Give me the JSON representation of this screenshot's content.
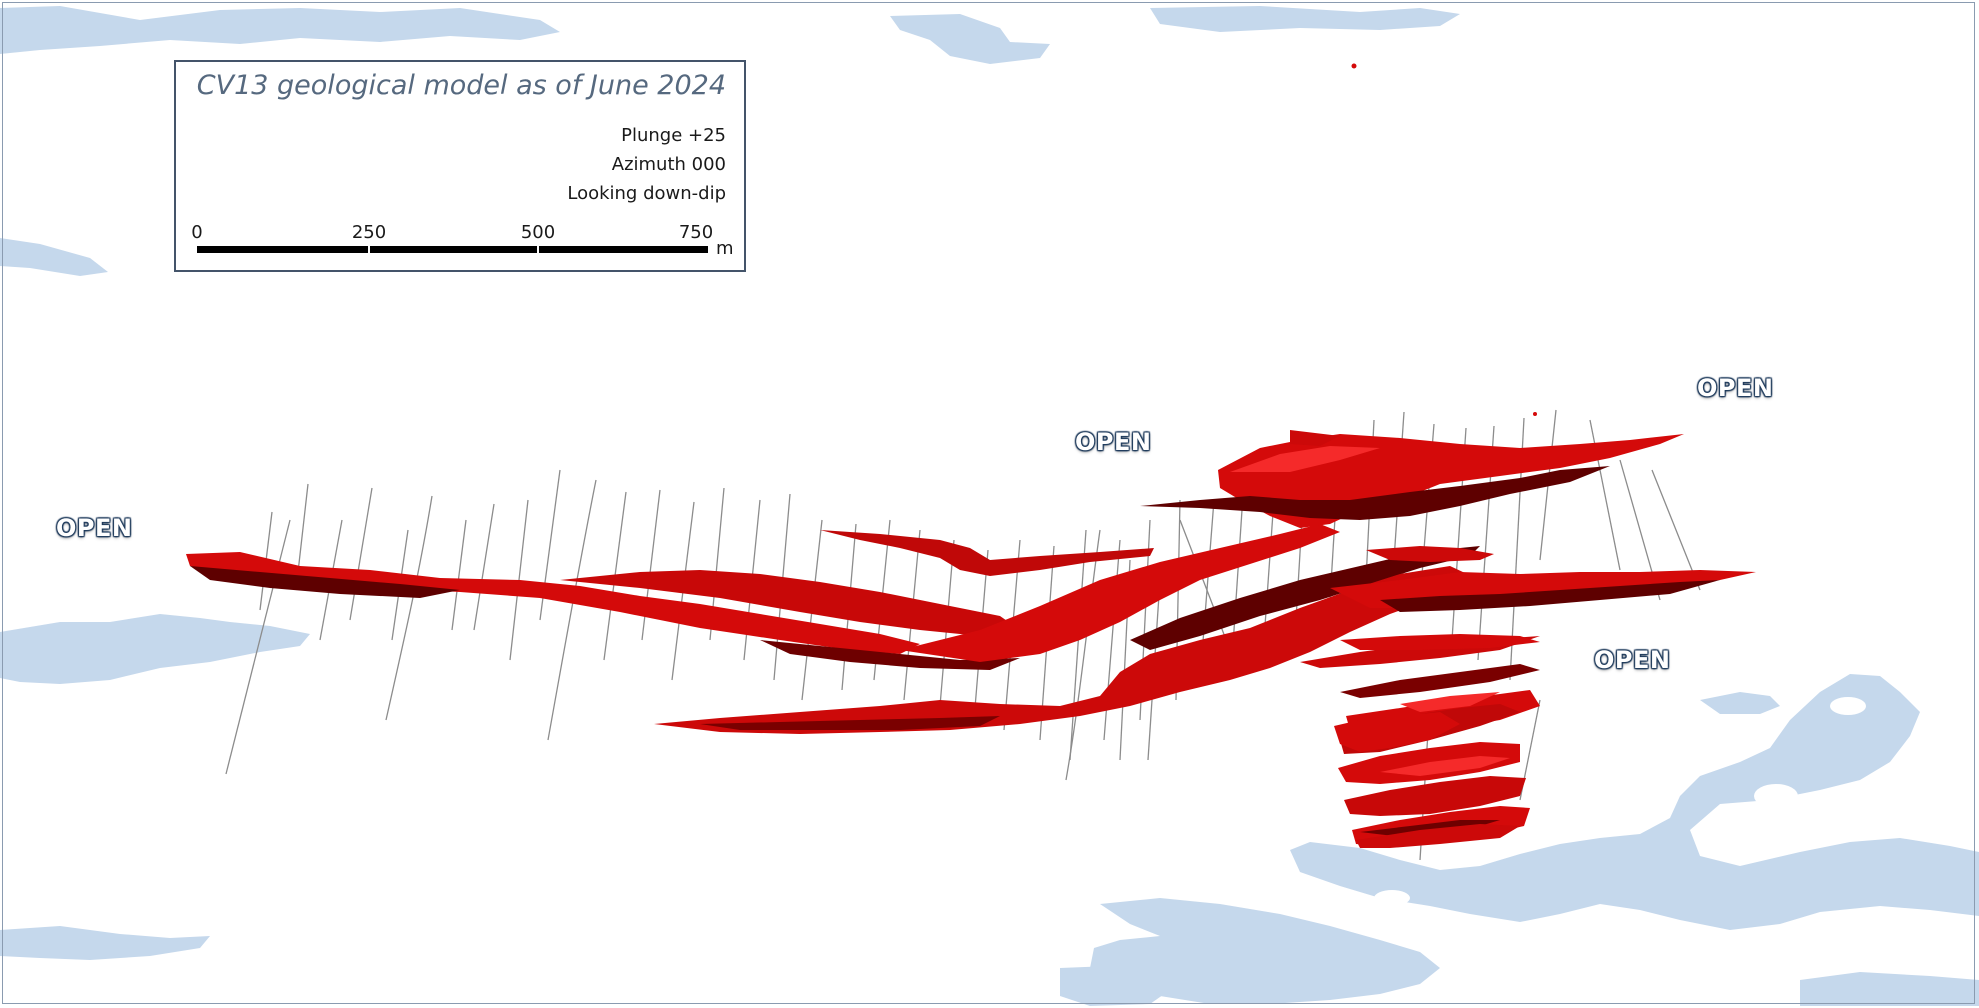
{
  "legend": {
    "title": "CV13 geological model as of June 2024",
    "plunge": "Plunge +25",
    "azimuth": "Azimuth 000",
    "looking": "Looking down-dip",
    "scale_ticks": [
      "0",
      "250",
      "500",
      "750"
    ],
    "scale_unit": "m"
  },
  "labels": {
    "open_west": "OPEN",
    "open_center": "OPEN",
    "open_northeast": "OPEN",
    "open_east": "OPEN"
  },
  "colors": {
    "water": "#c5d8ec",
    "pegmatite": "#d40a0a",
    "pegmatite_dark": "#5e0000",
    "pegmatite_light": "#f52a2a",
    "drillhole": "#8c8c8c",
    "legend_border": "#44546a"
  }
}
